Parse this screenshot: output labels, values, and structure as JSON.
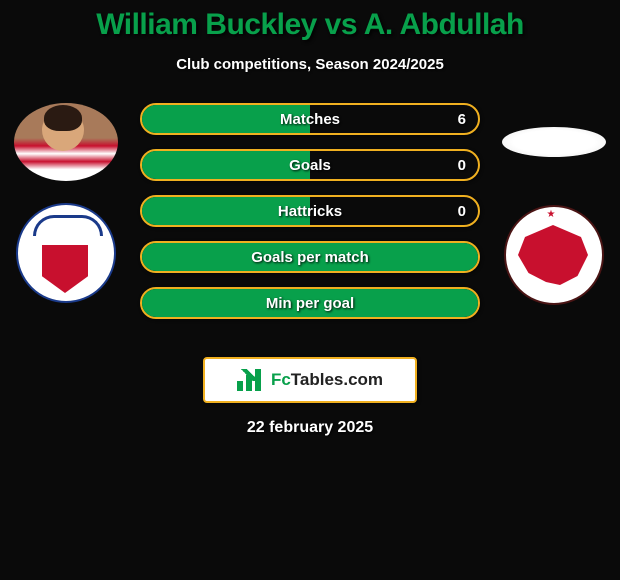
{
  "title": "William Buckley vs A. Abdullah",
  "subtitle": "Club competitions, Season 2024/2025",
  "date": "22 february 2025",
  "brand": {
    "name_left": "Fc",
    "name_right": "Tables.com"
  },
  "colors": {
    "accent_green": "#08a04b",
    "accent_orange": "#f0b020",
    "background": "#0a0a0a",
    "text": "#ffffff"
  },
  "bars": [
    {
      "label": "Matches",
      "left_value": null,
      "right_value": "6",
      "left_pct": 50,
      "full": false
    },
    {
      "label": "Goals",
      "left_value": null,
      "right_value": "0",
      "left_pct": 50,
      "full": false
    },
    {
      "label": "Hattricks",
      "left_value": null,
      "right_value": "0",
      "left_pct": 50,
      "full": false
    },
    {
      "label": "Goals per match",
      "left_value": null,
      "right_value": null,
      "left_pct": 100,
      "full": true
    },
    {
      "label": "Min per goal",
      "left_value": null,
      "right_value": null,
      "left_pct": 100,
      "full": true
    }
  ],
  "players": {
    "left": {
      "club": "Bolton"
    },
    "right": {
      "club": "Leyton Orient"
    }
  }
}
